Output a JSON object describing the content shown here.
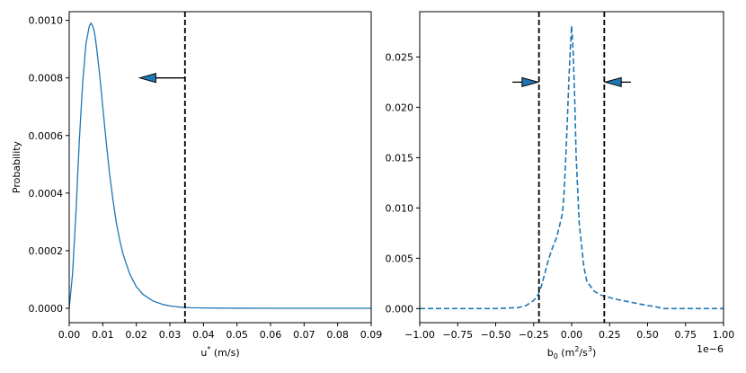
{
  "chart_data": [
    {
      "type": "line",
      "xlabel": "u* (m/s)",
      "ylabel": "Probability",
      "xlim": [
        0.0,
        0.09
      ],
      "ylim": [
        -5e-05,
        0.00103
      ],
      "xticks": [
        "0.00",
        "0.01",
        "0.02",
        "0.03",
        "0.04",
        "0.05",
        "0.06",
        "0.07",
        "0.08",
        "0.09"
      ],
      "yticks": [
        "0.0000",
        "0.0002",
        "0.0004",
        "0.0006",
        "0.0008",
        "0.0010"
      ],
      "series": [
        {
          "color": "#1f77b4",
          "style": "solid",
          "x": [
            0.0,
            0.001,
            0.002,
            0.003,
            0.004,
            0.005,
            0.006,
            0.0065,
            0.007,
            0.0075,
            0.008,
            0.009,
            0.01,
            0.011,
            0.012,
            0.013,
            0.014,
            0.015,
            0.016,
            0.018,
            0.02,
            0.022,
            0.025,
            0.028,
            0.03,
            0.033,
            0.036,
            0.04,
            0.045,
            0.05,
            0.06,
            0.07,
            0.08,
            0.09
          ],
          "y": [
            0.0,
            0.00012,
            0.00033,
            0.00058,
            0.00078,
            0.00092,
            0.00098,
            0.00099,
            0.00098,
            0.00096,
            0.00092,
            0.00082,
            0.0007,
            0.00058,
            0.00047,
            0.00038,
            0.0003,
            0.00024,
            0.00019,
            0.00012,
            7.5e-05,
            4.8e-05,
            2.5e-05,
            1.3e-05,
            8e-06,
            4e-06,
            2e-06,
            1e-06,
            5e-07,
            2e-07,
            0.0,
            0.0,
            0.0,
            0.0
          ]
        }
      ],
      "threshold_lines": [
        0.0345
      ],
      "arrows": [
        {
          "from": [
            0.0345,
            0.0008
          ],
          "to": [
            0.021,
            0.0008
          ],
          "direction": "left"
        }
      ]
    },
    {
      "type": "line",
      "xlabel": "b₀ (m²/s³)",
      "ylabel": "",
      "xlim": [
        -1.0,
        1.0
      ],
      "ylim": [
        -0.0014,
        0.0295
      ],
      "x_scale_label": "1e−6",
      "xticks": [
        "−1.00",
        "−0.75",
        "−0.50",
        "−0.25",
        "0.00",
        "0.25",
        "0.50",
        "0.75",
        "1.00"
      ],
      "yticks": [
        "0.000",
        "0.005",
        "0.010",
        "0.015",
        "0.020",
        "0.025"
      ],
      "series": [
        {
          "color": "#1f77b4",
          "style": "dashed",
          "x": [
            -1.0,
            -0.5,
            -0.35,
            -0.3,
            -0.25,
            -0.22,
            -0.2,
            -0.18,
            -0.15,
            -0.12,
            -0.1,
            -0.08,
            -0.06,
            -0.05,
            -0.04,
            -0.03,
            -0.02,
            -0.01,
            0.0,
            0.01,
            0.02,
            0.03,
            0.05,
            0.08,
            0.1,
            0.15,
            0.2,
            0.25,
            0.3,
            0.4,
            0.5,
            0.55,
            0.6,
            0.8,
            1.0
          ],
          "y": [
            0.0,
            0.0,
            0.0001,
            0.0003,
            0.0008,
            0.0014,
            0.0022,
            0.0033,
            0.005,
            0.0063,
            0.007,
            0.0082,
            0.0095,
            0.0115,
            0.0145,
            0.018,
            0.022,
            0.0255,
            0.0281,
            0.0255,
            0.021,
            0.015,
            0.0085,
            0.0042,
            0.0027,
            0.0017,
            0.0013,
            0.0011,
            0.0009,
            0.0006,
            0.0003,
            0.0002,
            0.0,
            0.0,
            0.0
          ]
        }
      ],
      "threshold_lines": [
        -0.215,
        0.215
      ],
      "arrows": [
        {
          "from": [
            -0.39,
            0.0225
          ],
          "to": [
            -0.22,
            0.0225
          ],
          "direction": "right"
        },
        {
          "from": [
            0.39,
            0.0225
          ],
          "to": [
            0.22,
            0.0225
          ],
          "direction": "left"
        }
      ]
    }
  ]
}
